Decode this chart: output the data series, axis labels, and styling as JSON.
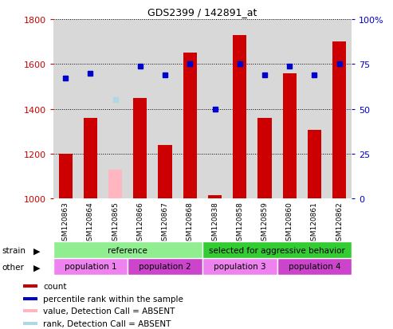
{
  "title": "GDS2399 / 142891_at",
  "samples": [
    "GSM120863",
    "GSM120864",
    "GSM120865",
    "GSM120866",
    "GSM120867",
    "GSM120868",
    "GSM120838",
    "GSM120858",
    "GSM120859",
    "GSM120860",
    "GSM120861",
    "GSM120862"
  ],
  "counts": [
    1200,
    1360,
    null,
    1450,
    1240,
    1650,
    1015,
    1730,
    1360,
    1560,
    1305,
    1700
  ],
  "absent_counts": [
    null,
    null,
    1130,
    null,
    null,
    null,
    null,
    null,
    null,
    null,
    null,
    null
  ],
  "percentile_ranks": [
    67,
    70,
    null,
    74,
    69,
    75,
    50,
    75,
    69,
    74,
    69,
    75
  ],
  "absent_ranks": [
    null,
    null,
    55,
    null,
    null,
    null,
    null,
    null,
    null,
    null,
    null,
    null
  ],
  "ylim_left": [
    1000,
    1800
  ],
  "ylim_right": [
    0,
    100
  ],
  "yticks_left": [
    1000,
    1200,
    1400,
    1600,
    1800
  ],
  "yticks_right": [
    0,
    25,
    50,
    75,
    100
  ],
  "bar_color": "#cc0000",
  "absent_bar_color": "#ffb6c1",
  "dot_color": "#0000cc",
  "absent_dot_color": "#add8e6",
  "strain_groups": [
    {
      "label": "reference",
      "start": 0,
      "end": 6,
      "color": "#90ee90"
    },
    {
      "label": "selected for aggressive behavior",
      "start": 6,
      "end": 12,
      "color": "#33cc33"
    }
  ],
  "other_groups": [
    {
      "label": "population 1",
      "start": 0,
      "end": 3,
      "color": "#ee82ee"
    },
    {
      "label": "population 2",
      "start": 3,
      "end": 6,
      "color": "#cc44cc"
    },
    {
      "label": "population 3",
      "start": 6,
      "end": 9,
      "color": "#ee82ee"
    },
    {
      "label": "population 4",
      "start": 9,
      "end": 12,
      "color": "#cc44cc"
    }
  ],
  "legend_items": [
    {
      "label": "count",
      "color": "#cc0000"
    },
    {
      "label": "percentile rank within the sample",
      "color": "#0000cc"
    },
    {
      "label": "value, Detection Call = ABSENT",
      "color": "#ffb6c1"
    },
    {
      "label": "rank, Detection Call = ABSENT",
      "color": "#add8e6"
    }
  ],
  "bg_color": "#d8d8d8",
  "font_size": 8,
  "bar_width": 0.55
}
